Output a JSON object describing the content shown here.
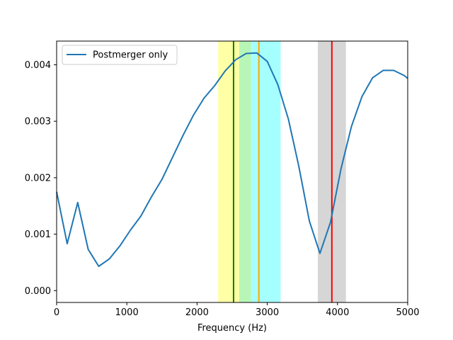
{
  "chart_data": {
    "type": "line",
    "title": "",
    "xlabel": "Frequency (Hz)",
    "ylabel": "",
    "xlim": [
      0,
      5000
    ],
    "ylim": [
      -0.00021,
      0.00442
    ],
    "grid": false,
    "legend_position": "top-left",
    "xticks": [
      0,
      1000,
      2000,
      3000,
      4000,
      5000
    ],
    "xtick_labels": [
      "0",
      "1000",
      "2000",
      "3000",
      "4000",
      "5000"
    ],
    "yticks": [
      0.0,
      0.001,
      0.002,
      0.003,
      0.004
    ],
    "ytick_labels": [
      "0.000",
      "0.001",
      "0.002",
      "0.003",
      "0.004"
    ],
    "series": [
      {
        "name": "Postmerger only",
        "color": "#1f77b4",
        "x": [
          0,
          150,
          300,
          450,
          600,
          750,
          900,
          1050,
          1200,
          1350,
          1500,
          1650,
          1800,
          1950,
          2100,
          2250,
          2400,
          2550,
          2700,
          2850,
          3000,
          3150,
          3300,
          3450,
          3600,
          3750,
          3900,
          4050,
          4200,
          4350,
          4500,
          4650,
          4800,
          4950,
          5000
        ],
        "values": [
          0.00175,
          0.00083,
          0.00156,
          0.00073,
          0.00043,
          0.00056,
          0.00079,
          0.00107,
          0.00132,
          0.00166,
          0.00197,
          0.00236,
          0.00275,
          0.00311,
          0.00341,
          0.00363,
          0.00389,
          0.00409,
          0.0042,
          0.00421,
          0.00406,
          0.00365,
          0.00304,
          0.0022,
          0.00123,
          0.00066,
          0.00121,
          0.00216,
          0.00291,
          0.00344,
          0.00377,
          0.0039,
          0.0039,
          0.00381,
          0.00376
        ]
      }
    ],
    "bands": [
      {
        "x0": 2300,
        "x1": 2600,
        "color": "#ffff80",
        "opacity": 0.7
      },
      {
        "x0": 2600,
        "x1": 2770,
        "color": "#b0f5b0",
        "opacity": 0.9
      },
      {
        "x0": 2770,
        "x1": 3190,
        "color": "#80ffff",
        "opacity": 0.7
      },
      {
        "x0": 3720,
        "x1": 4120,
        "color": "#c0c0c0",
        "opacity": 0.65
      }
    ],
    "vlines": [
      {
        "x": 2520,
        "color": "#008000"
      },
      {
        "x": 2880,
        "color": "#ffa500"
      },
      {
        "x": 3920,
        "color": "#ff0000"
      }
    ]
  }
}
